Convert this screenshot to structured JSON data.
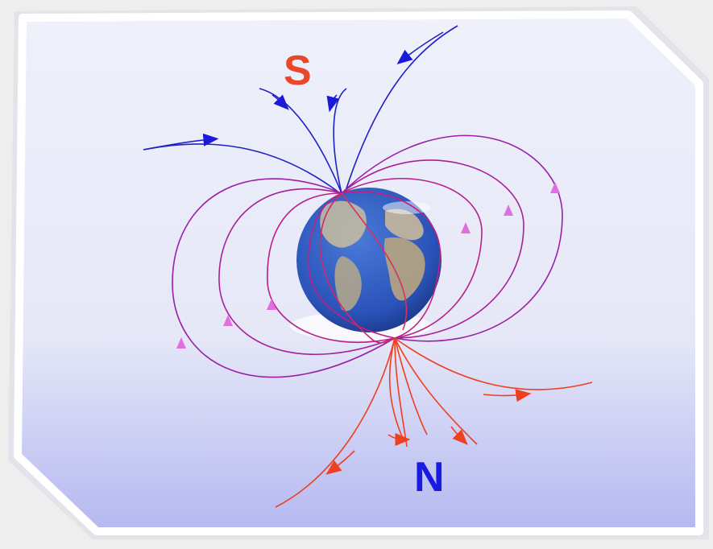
{
  "diagram": {
    "south_label": "S",
    "north_label": "N"
  },
  "colors": {
    "south_label": "#e8472a",
    "north_label": "#1a1ae0",
    "field_blue": "#2020c8",
    "field_purple": "#a020a0",
    "field_magenta": "#c0208a",
    "field_red": "#e8402a",
    "arrow_pink": "#e070e0",
    "panel_top": "#eef0fa",
    "panel_bottom": "#b8bcf2",
    "panel_border": "#ffffff",
    "ocean": "#2a52b8",
    "land": "#c8b89a"
  },
  "icons": [
    "earth-globe-icon",
    "field-arrow-icon"
  ]
}
